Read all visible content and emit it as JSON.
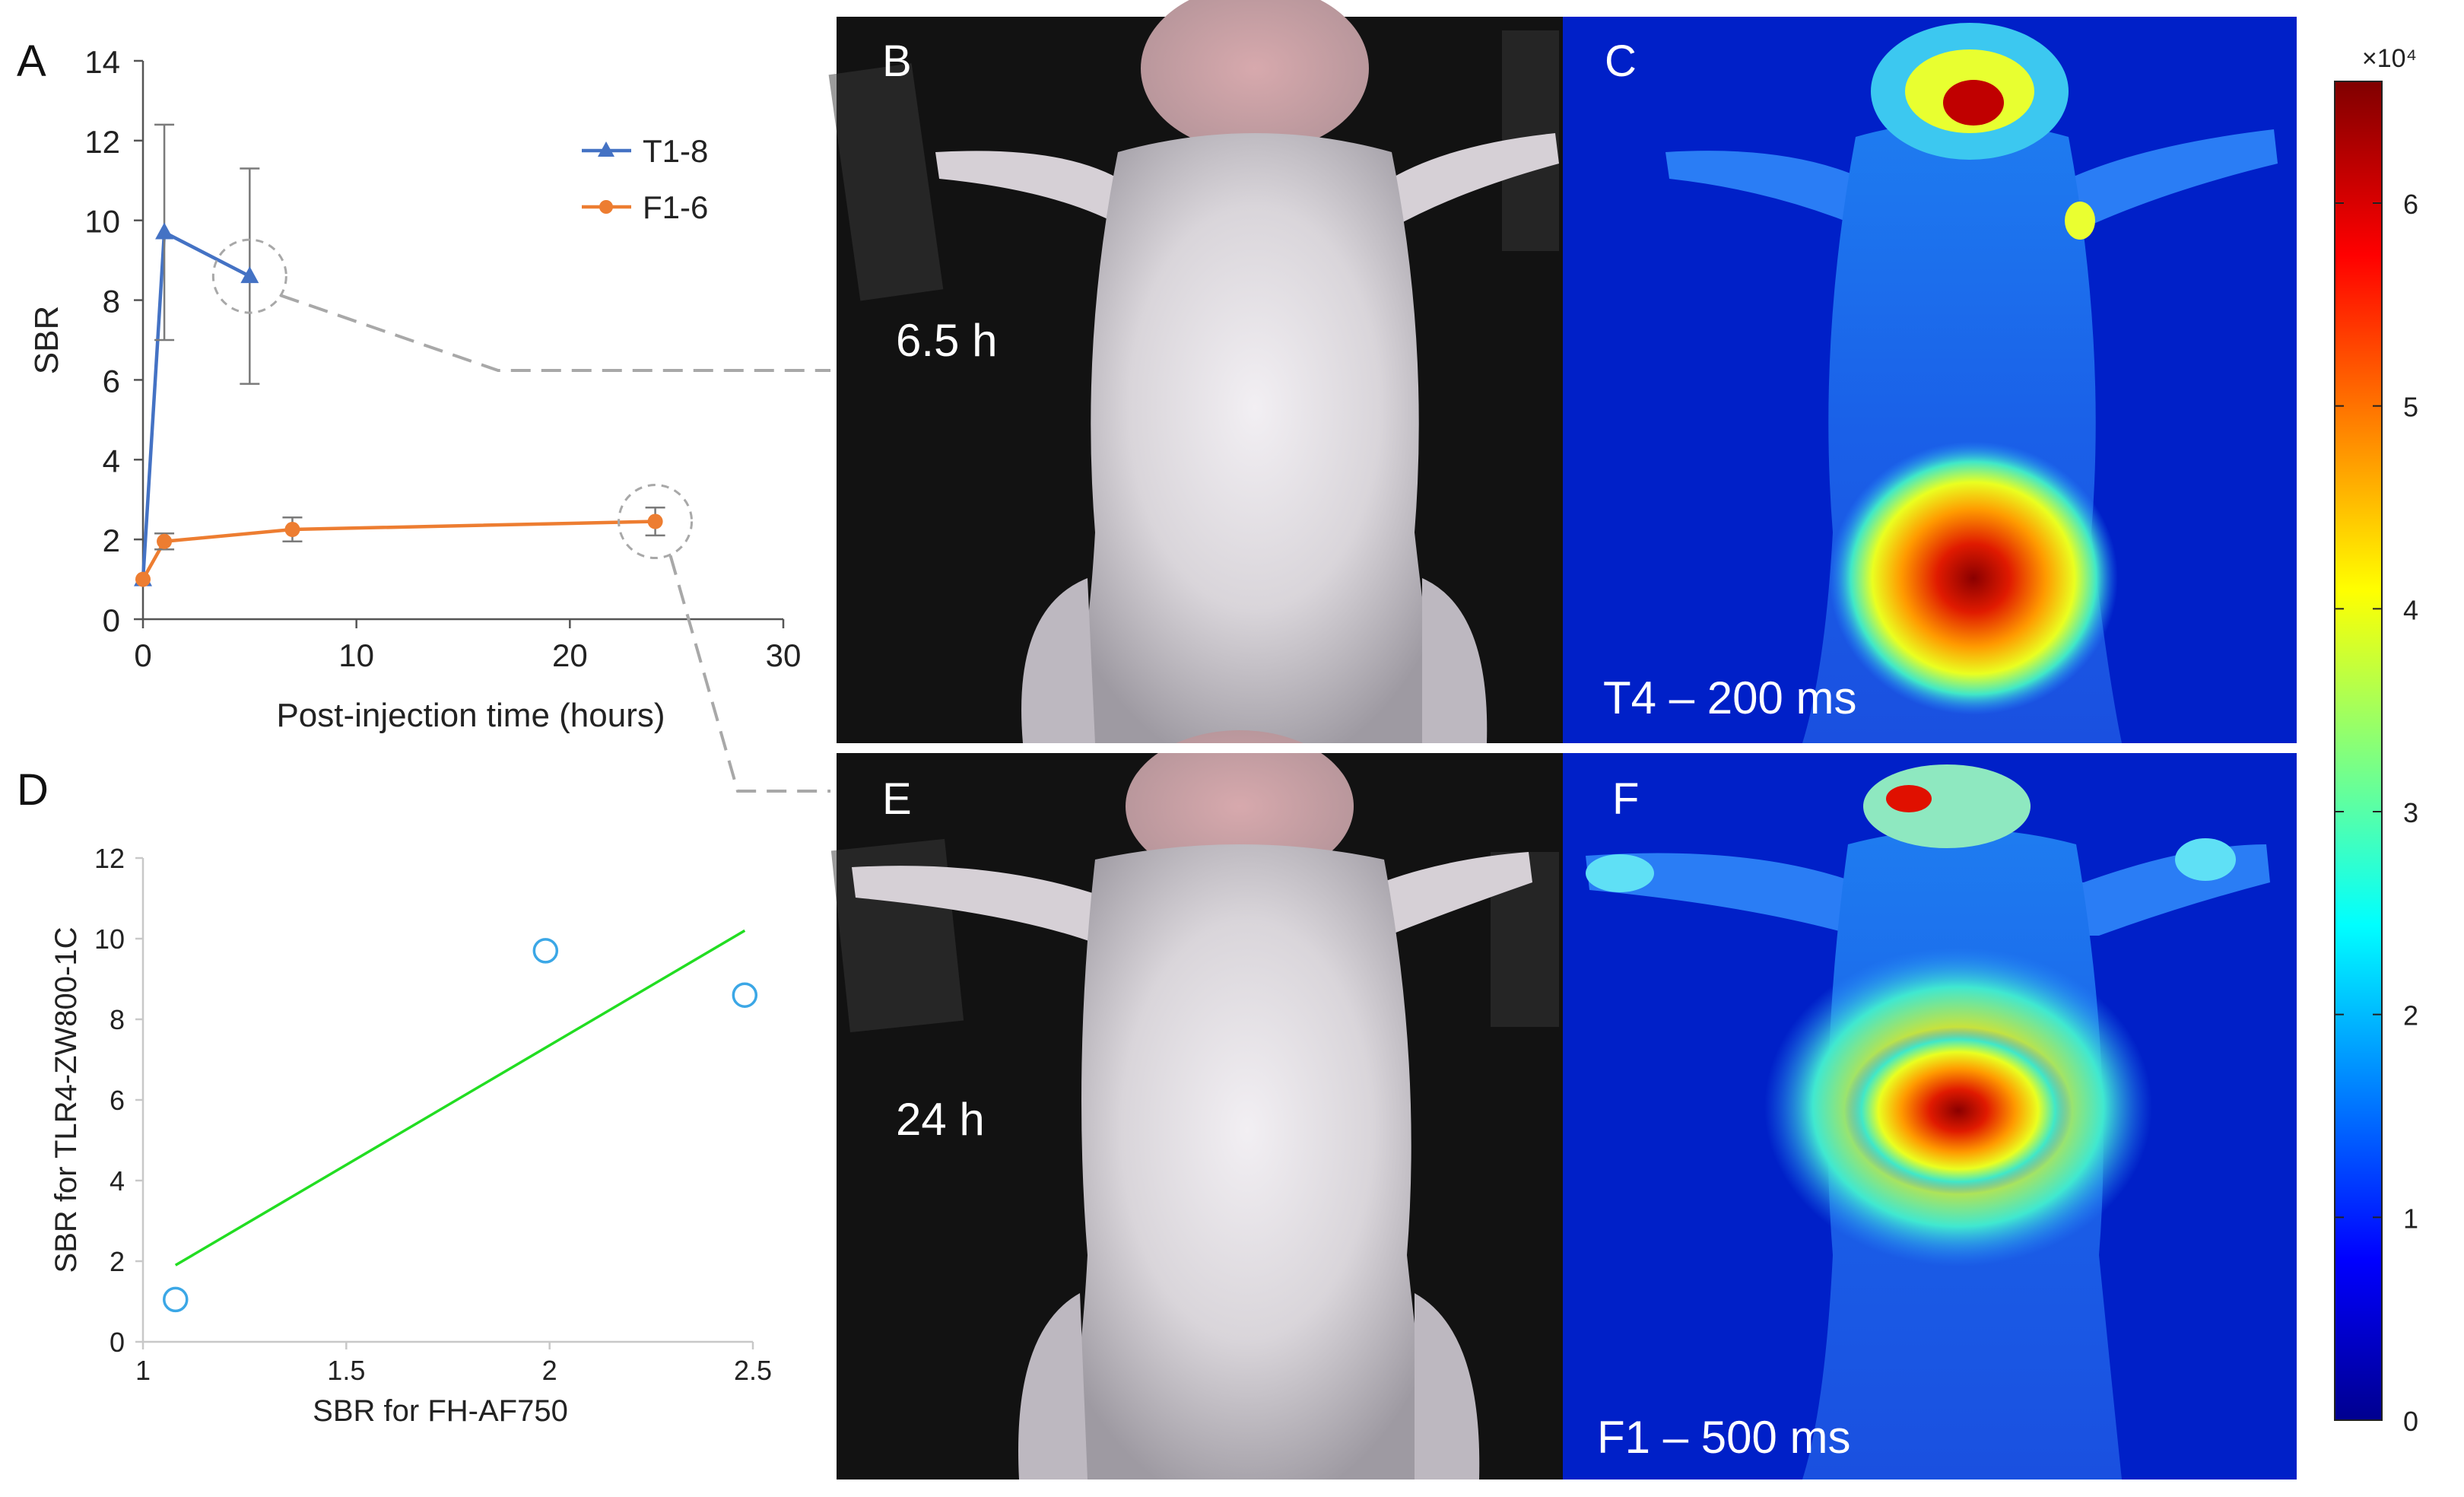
{
  "figure": {
    "panels": {
      "A": "A",
      "B": "B",
      "C": "C",
      "D": "D",
      "E": "E",
      "F": "F"
    },
    "colors": {
      "t_series": "#4472C4",
      "f_series": "#ED7D31",
      "fit_line": "#22DD22",
      "scatter": "#3BA7E6",
      "callout": "#A8A8A8"
    }
  },
  "images": {
    "B": {
      "label": "6.5 h",
      "desc": "photograph of mouse (ventral view)"
    },
    "C": {
      "label": "T4 – 200 ms",
      "desc": "fluorescence image, jet colormap"
    },
    "E": {
      "label": "24 h",
      "desc": "photograph of mouse (ventral view)"
    },
    "F": {
      "label": "F1 – 500 ms",
      "desc": "fluorescence image, jet colormap"
    }
  },
  "colorbar": {
    "exponent_label": "×10⁴",
    "ticks": [
      0,
      1,
      2,
      3,
      4,
      5,
      6
    ],
    "max": 6.6,
    "colormap": "jet"
  },
  "chart_data": [
    {
      "id": "A",
      "type": "line",
      "title": "",
      "xlabel": "Post-injection time (hours)",
      "ylabel": "SBR",
      "xlim": [
        0,
        30
      ],
      "ylim": [
        0,
        14
      ],
      "xticks": [
        0,
        10,
        20,
        30
      ],
      "yticks": [
        0,
        2,
        4,
        6,
        8,
        10,
        12,
        14
      ],
      "legend_position": "top-right",
      "series": [
        {
          "name": "T1-8",
          "color": "#4472C4",
          "marker": "triangle",
          "x": [
            0,
            1,
            5
          ],
          "y": [
            1.0,
            9.7,
            8.6
          ],
          "err": [
            0,
            2.7,
            2.7
          ]
        },
        {
          "name": "F1-6",
          "color": "#ED7D31",
          "marker": "circle",
          "x": [
            0,
            1,
            7,
            24
          ],
          "y": [
            1.0,
            1.95,
            2.25,
            2.45
          ],
          "err": [
            0,
            0.2,
            0.3,
            0.35
          ]
        }
      ],
      "highlighted_points": [
        {
          "series": "T1-8",
          "x": 5,
          "y": 8.6,
          "links_to": "B"
        },
        {
          "series": "F1-6",
          "x": 24,
          "y": 2.45,
          "links_to": "E"
        }
      ]
    },
    {
      "id": "D",
      "type": "scatter",
      "title": "",
      "xlabel": "SBR for FH-AF750",
      "ylabel": "SBR for TLR4-ZW800-1C",
      "xlim": [
        1,
        2.5
      ],
      "ylim": [
        0,
        12
      ],
      "xticks": [
        1,
        1.5,
        2,
        2.5
      ],
      "xtick_labels": [
        "1",
        "1.5",
        "2",
        "2.5"
      ],
      "yticks": [
        0,
        2,
        4,
        6,
        8,
        10,
        12
      ],
      "points": {
        "x": [
          1.08,
          1.99,
          2.48
        ],
        "y": [
          1.05,
          9.7,
          8.6
        ]
      },
      "fit_line": {
        "x": [
          1.08,
          2.48
        ],
        "y": [
          1.9,
          10.2
        ]
      }
    }
  ]
}
